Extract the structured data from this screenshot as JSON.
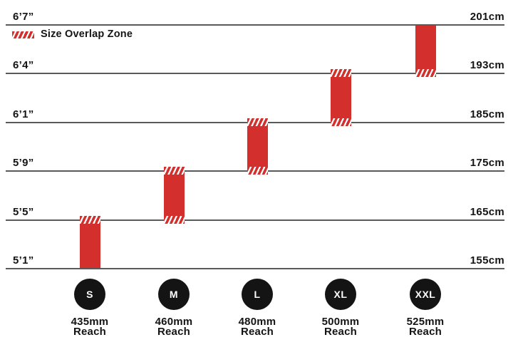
{
  "chart_data": {
    "type": "bar",
    "title": "",
    "legend": [
      "Size Overlap Zone"
    ],
    "legend_position": "top-left",
    "orientation": "vertical-range-bars",
    "grid": "horizontal-lines",
    "y_axis_left": {
      "unit": "feet-inches",
      "ticks": [
        "6’7”",
        "6’4”",
        "6’1”",
        "5’9”",
        "5’5”",
        "5’1”"
      ]
    },
    "y_axis_right": {
      "unit": "cm",
      "ticks": [
        "201cm",
        "193cm",
        "185cm",
        "175cm",
        "165cm",
        "155cm"
      ]
    },
    "series": [
      {
        "size": "S",
        "reach_mm": 435,
        "rider_height_cm": [
          155,
          165
        ],
        "rider_height_imperial": [
          "5’1”",
          "5’5”"
        ],
        "overlap_top": true,
        "overlap_bottom": false
      },
      {
        "size": "M",
        "reach_mm": 460,
        "rider_height_cm": [
          165,
          175
        ],
        "rider_height_imperial": [
          "5’5”",
          "5’9”"
        ],
        "overlap_top": true,
        "overlap_bottom": true
      },
      {
        "size": "L",
        "reach_mm": 480,
        "rider_height_cm": [
          175,
          185
        ],
        "rider_height_imperial": [
          "5’9”",
          "6’1”"
        ],
        "overlap_top": true,
        "overlap_bottom": true
      },
      {
        "size": "XL",
        "reach_mm": 500,
        "rider_height_cm": [
          185,
          193
        ],
        "rider_height_imperial": [
          "6’1”",
          "6’4”"
        ],
        "overlap_top": true,
        "overlap_bottom": true
      },
      {
        "size": "XXL",
        "reach_mm": 525,
        "rider_height_cm": [
          193,
          201
        ],
        "rider_height_imperial": [
          "6’4”",
          "6’7”"
        ],
        "overlap_top": false,
        "overlap_bottom": true
      }
    ],
    "colors": {
      "bar": "#d22f2d",
      "gridline": "#5a5a5a",
      "badge": "#141414",
      "text": "#141414"
    }
  },
  "axis": {
    "left": [
      "6’7”",
      "6’4”",
      "6’1”",
      "5’9”",
      "5’5”",
      "5’1”"
    ],
    "right": [
      "201cm",
      "193cm",
      "185cm",
      "175cm",
      "165cm",
      "155cm"
    ]
  },
  "legend": {
    "label": "Size Overlap Zone"
  },
  "sizes": [
    {
      "badge": "S",
      "reach": "435mm",
      "reach_word": "Reach"
    },
    {
      "badge": "M",
      "reach": "460mm",
      "reach_word": "Reach"
    },
    {
      "badge": "L",
      "reach": "480mm",
      "reach_word": "Reach"
    },
    {
      "badge": "XL",
      "reach": "500mm",
      "reach_word": "Reach"
    },
    {
      "badge": "XXL",
      "reach": "525mm",
      "reach_word": "Reach"
    }
  ]
}
